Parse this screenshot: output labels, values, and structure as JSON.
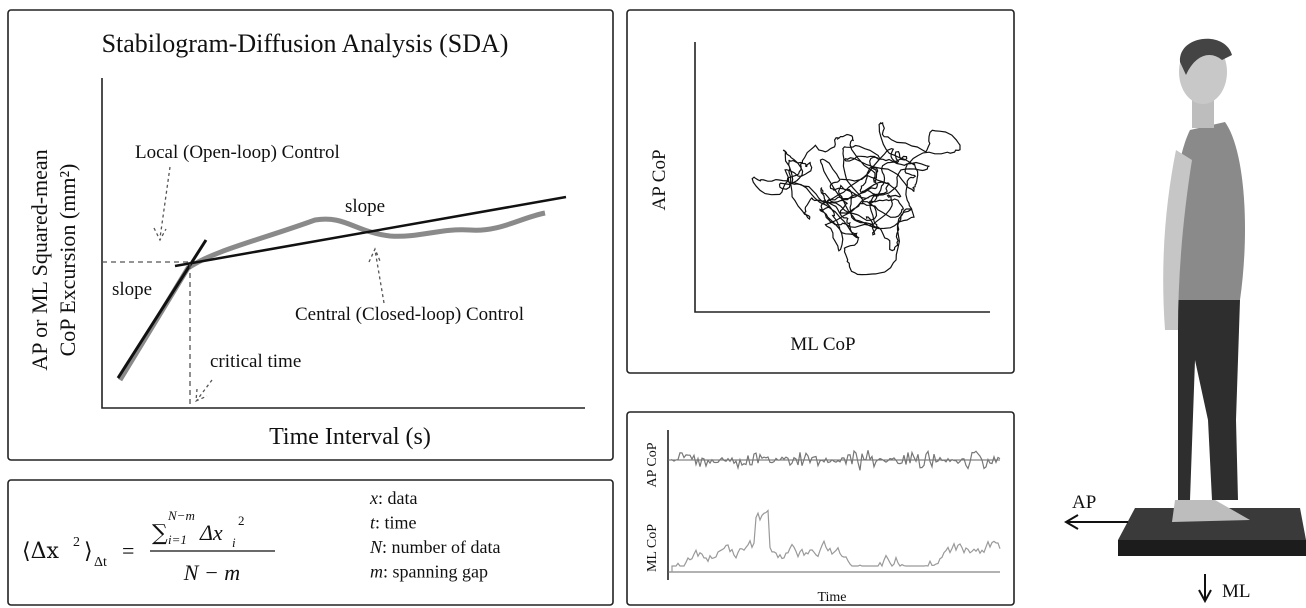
{
  "sda_panel": {
    "title": "Stabilogram-Diffusion Analysis (SDA)",
    "y_label_line1": "AP or ML Squared-mean",
    "y_label_line2": "CoP Excursion (mm²)",
    "x_label": "Time Interval (s)",
    "local_control": "Local (Open-loop) Control",
    "slope_upper": "slope",
    "slope_lower": "slope",
    "central_control": "Central (Closed-loop) Control",
    "critical_time": "critical time"
  },
  "formula_panel": {
    "lhs": "⟨Δx",
    "lhs_sup": "2",
    "lhs_close": "⟩",
    "lhs_sub": "Δt",
    "equals": "=",
    "sum": "∑",
    "sum_upper": "N−m",
    "sum_lower": "i=1",
    "term": "Δx",
    "term_sub": "i",
    "term_sup": "2",
    "denominator": "N − m",
    "legend": [
      {
        "symbol": "x",
        "text": ": data"
      },
      {
        "symbol": "t",
        "text": ": time"
      },
      {
        "symbol": "N",
        "text": ": number of data"
      },
      {
        "symbol": "m",
        "text": ": spanning gap"
      }
    ]
  },
  "cop_panel": {
    "y_label": "AP CoP",
    "x_label": "ML CoP"
  },
  "time_panel": {
    "top_label": "AP CoP",
    "bottom_label": "ML CoP",
    "x_label": "Time"
  },
  "figure": {
    "ap_label": "AP",
    "ml_label": "ML"
  }
}
